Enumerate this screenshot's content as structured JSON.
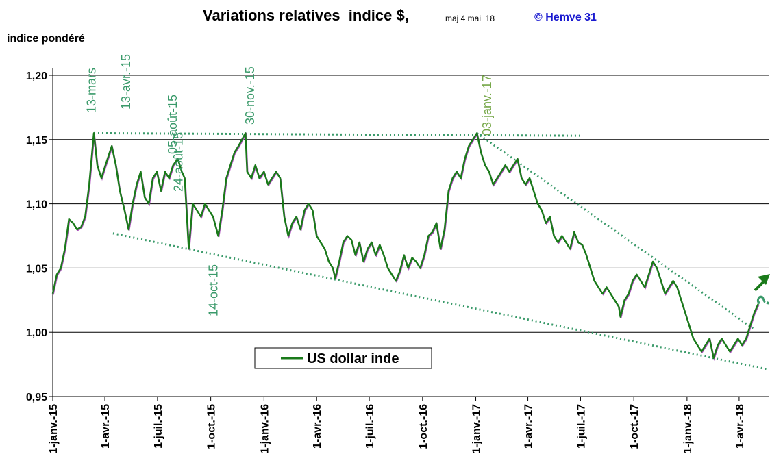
{
  "chart_data": {
    "type": "line",
    "title": "Variations relatives  indice $,",
    "subtitle": "maj 4 mai  18",
    "credit": "© Hemve 31",
    "y_label": "indice pondéré",
    "legend": "bottom-center",
    "grid": true,
    "xlim": [
      "2015-01-01",
      "2018-05-22"
    ],
    "ylim": [
      0.95,
      1.2
    ],
    "yticks": [
      {
        "value": 0.95,
        "label": "0,95"
      },
      {
        "value": 1.0,
        "label": "1,00"
      },
      {
        "value": 1.05,
        "label": "1,05"
      },
      {
        "value": 1.1,
        "label": "1,10"
      },
      {
        "value": 1.15,
        "label": "1,15"
      },
      {
        "value": 1.2,
        "label": "1,20"
      }
    ],
    "xticks": [
      {
        "value": "2015-01-01",
        "label": "1-janv.-15"
      },
      {
        "value": "2015-04-01",
        "label": "1-avr.-15"
      },
      {
        "value": "2015-07-01",
        "label": "1-juil.-15"
      },
      {
        "value": "2015-10-01",
        "label": "1-oct.-15"
      },
      {
        "value": "2016-01-01",
        "label": "1-janv.-16"
      },
      {
        "value": "2016-04-01",
        "label": "1-avr.-16"
      },
      {
        "value": "2016-07-01",
        "label": "1-juil.-16"
      },
      {
        "value": "2016-10-01",
        "label": "1-oct.-16"
      },
      {
        "value": "2017-01-01",
        "label": "1-janv.-17"
      },
      {
        "value": "2017-04-01",
        "label": "1-avr.-17"
      },
      {
        "value": "2017-07-01",
        "label": "1-juil.-17"
      },
      {
        "value": "2017-10-01",
        "label": "1-oct.-17"
      },
      {
        "value": "2018-01-01",
        "label": "1-janv.-18"
      },
      {
        "value": "2018-04-01",
        "label": "1-avr.-18"
      }
    ],
    "x": [
      "2015-01-01",
      "2015-01-08",
      "2015-01-15",
      "2015-01-22",
      "2015-01-29",
      "2015-02-05",
      "2015-02-12",
      "2015-02-19",
      "2015-02-26",
      "2015-03-05",
      "2015-03-13",
      "2015-03-19",
      "2015-03-26",
      "2015-04-02",
      "2015-04-13",
      "2015-04-20",
      "2015-04-27",
      "2015-05-05",
      "2015-05-12",
      "2015-05-19",
      "2015-05-26",
      "2015-06-02",
      "2015-06-09",
      "2015-06-16",
      "2015-06-23",
      "2015-06-30",
      "2015-07-07",
      "2015-07-14",
      "2015-07-21",
      "2015-07-28",
      "2015-08-05",
      "2015-08-12",
      "2015-08-17",
      "2015-08-24",
      "2015-08-31",
      "2015-09-07",
      "2015-09-14",
      "2015-09-21",
      "2015-09-28",
      "2015-10-05",
      "2015-10-14",
      "2015-10-21",
      "2015-10-28",
      "2015-11-04",
      "2015-11-11",
      "2015-11-18",
      "2015-11-30",
      "2015-12-03",
      "2015-12-10",
      "2015-12-17",
      "2015-12-24",
      "2016-01-01",
      "2016-01-08",
      "2016-01-15",
      "2016-01-22",
      "2016-01-29",
      "2016-02-05",
      "2016-02-12",
      "2016-02-19",
      "2016-02-26",
      "2016-03-04",
      "2016-03-11",
      "2016-03-18",
      "2016-03-25",
      "2016-04-01",
      "2016-04-08",
      "2016-04-15",
      "2016-04-22",
      "2016-04-29",
      "2016-05-03",
      "2016-05-10",
      "2016-05-17",
      "2016-05-24",
      "2016-05-31",
      "2016-06-07",
      "2016-06-14",
      "2016-06-21",
      "2016-06-28",
      "2016-07-05",
      "2016-07-12",
      "2016-07-19",
      "2016-07-26",
      "2016-08-02",
      "2016-08-09",
      "2016-08-16",
      "2016-08-23",
      "2016-08-30",
      "2016-09-06",
      "2016-09-13",
      "2016-09-20",
      "2016-09-27",
      "2016-10-04",
      "2016-10-11",
      "2016-10-18",
      "2016-10-25",
      "2016-11-01",
      "2016-11-08",
      "2016-11-15",
      "2016-11-22",
      "2016-11-29",
      "2016-12-06",
      "2016-12-13",
      "2016-12-20",
      "2016-12-27",
      "2017-01-03",
      "2017-01-10",
      "2017-01-17",
      "2017-01-24",
      "2017-01-31",
      "2017-02-07",
      "2017-02-14",
      "2017-02-21",
      "2017-02-28",
      "2017-03-07",
      "2017-03-14",
      "2017-03-21",
      "2017-03-28",
      "2017-04-04",
      "2017-04-11",
      "2017-04-18",
      "2017-04-25",
      "2017-05-02",
      "2017-05-09",
      "2017-05-16",
      "2017-05-23",
      "2017-05-30",
      "2017-06-06",
      "2017-06-13",
      "2017-06-20",
      "2017-06-27",
      "2017-07-04",
      "2017-07-11",
      "2017-07-18",
      "2017-07-25",
      "2017-08-01",
      "2017-08-08",
      "2017-08-15",
      "2017-08-22",
      "2017-08-29",
      "2017-09-05",
      "2017-09-08",
      "2017-09-15",
      "2017-09-22",
      "2017-09-29",
      "2017-10-06",
      "2017-10-13",
      "2017-10-20",
      "2017-10-27",
      "2017-11-03",
      "2017-11-10",
      "2017-11-17",
      "2017-11-24",
      "2017-12-01",
      "2017-12-08",
      "2017-12-15",
      "2017-12-22",
      "2017-12-29",
      "2018-01-05",
      "2018-01-12",
      "2018-01-19",
      "2018-01-26",
      "2018-02-02",
      "2018-02-09",
      "2018-02-16",
      "2018-02-23",
      "2018-03-02",
      "2018-03-09",
      "2018-03-16",
      "2018-03-23",
      "2018-03-30",
      "2018-04-06",
      "2018-04-13",
      "2018-04-20",
      "2018-04-27",
      "2018-05-04"
    ],
    "series": [
      {
        "name": "US dollar inde",
        "color": "#1a7a1a",
        "values": [
          1.03,
          1.045,
          1.05,
          1.065,
          1.088,
          1.085,
          1.08,
          1.082,
          1.09,
          1.115,
          1.155,
          1.13,
          1.12,
          1.13,
          1.145,
          1.13,
          1.11,
          1.095,
          1.08,
          1.1,
          1.115,
          1.125,
          1.105,
          1.1,
          1.12,
          1.125,
          1.11,
          1.125,
          1.12,
          1.13,
          1.135,
          1.125,
          1.12,
          1.065,
          1.1,
          1.095,
          1.09,
          1.1,
          1.095,
          1.09,
          1.075,
          1.095,
          1.12,
          1.13,
          1.14,
          1.145,
          1.155,
          1.125,
          1.12,
          1.13,
          1.12,
          1.125,
          1.115,
          1.12,
          1.125,
          1.12,
          1.09,
          1.075,
          1.085,
          1.09,
          1.08,
          1.095,
          1.1,
          1.095,
          1.075,
          1.07,
          1.065,
          1.055,
          1.05,
          1.042,
          1.055,
          1.07,
          1.075,
          1.072,
          1.06,
          1.07,
          1.055,
          1.065,
          1.07,
          1.06,
          1.068,
          1.06,
          1.05,
          1.045,
          1.04,
          1.048,
          1.06,
          1.05,
          1.058,
          1.055,
          1.05,
          1.06,
          1.075,
          1.078,
          1.085,
          1.065,
          1.08,
          1.11,
          1.12,
          1.125,
          1.12,
          1.135,
          1.145,
          1.15,
          1.155,
          1.14,
          1.13,
          1.125,
          1.115,
          1.12,
          1.125,
          1.13,
          1.125,
          1.13,
          1.135,
          1.12,
          1.115,
          1.12,
          1.11,
          1.1,
          1.095,
          1.085,
          1.09,
          1.075,
          1.07,
          1.075,
          1.07,
          1.065,
          1.078,
          1.07,
          1.068,
          1.06,
          1.05,
          1.04,
          1.035,
          1.03,
          1.035,
          1.03,
          1.025,
          1.02,
          1.012,
          1.025,
          1.03,
          1.04,
          1.045,
          1.04,
          1.035,
          1.045,
          1.055,
          1.05,
          1.04,
          1.03,
          1.035,
          1.04,
          1.035,
          1.025,
          1.015,
          1.005,
          0.995,
          0.99,
          0.985,
          0.99,
          0.995,
          0.98,
          0.99,
          0.995,
          0.99,
          0.985,
          0.99,
          0.995,
          0.99,
          0.995,
          1.005,
          1.015,
          1.022
        ]
      }
    ],
    "trendlines": [
      {
        "x": [
          "2015-03-13",
          "2017-07-01"
        ],
        "y": [
          1.155,
          1.153
        ]
      },
      {
        "x": [
          "2015-04-15",
          "2018-05-22"
        ],
        "y": [
          1.077,
          0.971
        ]
      },
      {
        "x": [
          "2017-01-03",
          "2018-04-25"
        ],
        "y": [
          1.155,
          1.003
        ]
      }
    ],
    "annotations": [
      {
        "text": "13-mars",
        "x": "2015-03-13"
      },
      {
        "text": "13-avr.-15",
        "x": "2015-04-13"
      },
      {
        "text": "05-août-15",
        "x": "2015-08-05"
      },
      {
        "text": "24-août-15",
        "x": "2015-08-24"
      },
      {
        "text": "30-nov.-15",
        "x": "2015-11-30"
      },
      {
        "text": "14-oct-15",
        "x": "2015-10-14"
      },
      {
        "text": "03-janv.-17",
        "x": "2017-01-03"
      },
      {
        "text": "?"
      }
    ]
  }
}
